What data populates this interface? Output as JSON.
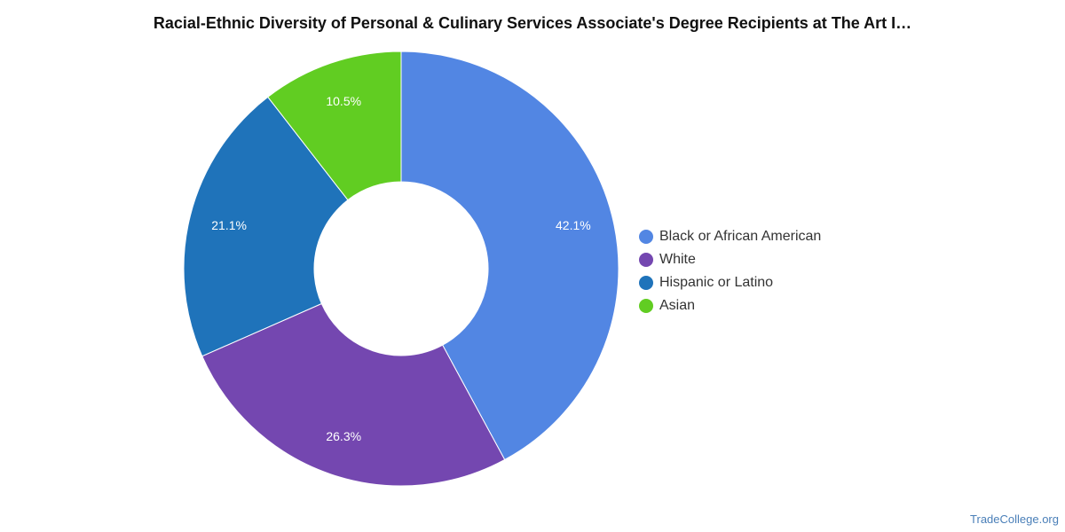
{
  "chart_data": {
    "type": "pie",
    "variant": "donut",
    "title": "Racial-Ethnic Diversity of Personal & Culinary Services Associate's Degree Recipients at The Art I…",
    "categories": [
      "Black or African American",
      "White",
      "Hispanic or Latino",
      "Asian"
    ],
    "values": [
      42.1,
      26.3,
      21.1,
      10.5
    ],
    "labels": [
      "42.1%",
      "26.3%",
      "21.1%",
      "10.5%"
    ],
    "colors": [
      "#5286e3",
      "#7447b0",
      "#1f73ba",
      "#61cd22"
    ],
    "legend_position": "right"
  },
  "footer": {
    "source": "TradeCollege.org"
  }
}
